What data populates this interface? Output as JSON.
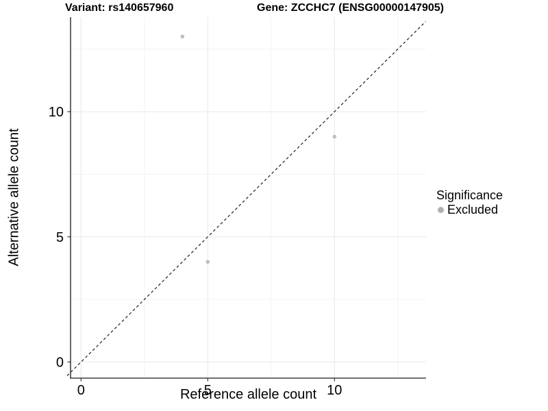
{
  "header": {
    "variant_title": "Variant: rs140657960",
    "gene_title": "Gene: ZCCHC7 (ENSG00000147905)"
  },
  "chart_data": {
    "type": "scatter",
    "title": "Variant: rs140657960 — Gene: ZCCHC7 (ENSG00000147905)",
    "xlabel": "Reference allele count",
    "ylabel": "Alternative allele count",
    "xlim": [
      -0.55,
      13.6
    ],
    "ylim": [
      -0.65,
      13.8
    ],
    "x_ticks": [
      0,
      5,
      10
    ],
    "y_ticks": [
      0,
      5,
      10
    ],
    "x_minor_ticks": [
      2.5,
      7.5,
      12.5
    ],
    "y_minor_ticks": [
      2.5,
      7.5,
      12.5
    ],
    "grid": true,
    "legend_position": "right",
    "series": [
      {
        "name": "Excluded",
        "color": "#bebebe",
        "points": [
          {
            "x": 4,
            "y": 13
          },
          {
            "x": 5,
            "y": 4
          },
          {
            "x": 10,
            "y": 9
          }
        ]
      }
    ],
    "reference_line": {
      "equation": "y = x",
      "style": "dashed",
      "color": "#1c1c1c",
      "x_range": [
        -0.55,
        13.6
      ]
    },
    "legend": {
      "title": "Significance",
      "items": [
        {
          "label": "Excluded",
          "color": "#b0b0b0"
        }
      ]
    },
    "style": {
      "grid_major_color": "#e8e8e8",
      "grid_minor_color": "#f3f3f3",
      "axis_line_color": "#404040",
      "tick_color": "#333333",
      "point_radius": 2.8
    }
  }
}
